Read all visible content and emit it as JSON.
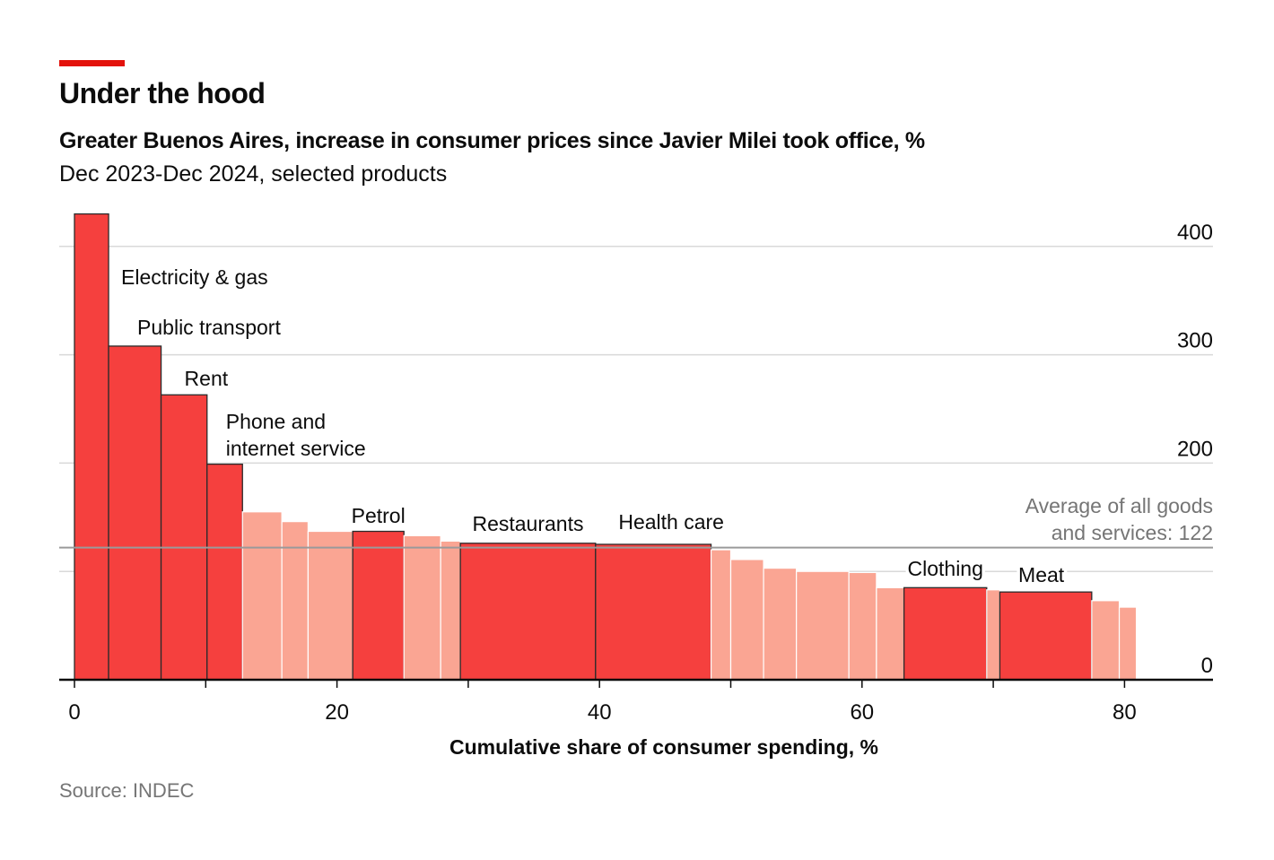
{
  "header": {
    "title": "Under the hood",
    "subtitle": "Greater Buenos Aires, increase in consumer prices since Javier Milei took office, %",
    "subtitle2": "Dec 2023-Dec 2024, selected products"
  },
  "footer": {
    "source": "Source: INDEC"
  },
  "colors": {
    "highlight": "#f5403e",
    "muted": "#faa593",
    "accent": "#e3120b",
    "grid": "#d9d9d9",
    "average_line": "#9a9a9a",
    "average_text": "#757575"
  },
  "chart_data": {
    "type": "bar",
    "subtype": "variable-width (Marimekko)",
    "title": "Under the hood",
    "xlabel": "Cumulative share of consumer spending, %",
    "ylabel": "",
    "xlim": [
      0,
      86
    ],
    "ylim": [
      0,
      430
    ],
    "x_ticks": [
      0,
      20,
      40,
      60,
      80
    ],
    "x_minor_ticks": [
      10,
      30,
      50,
      70
    ],
    "y_ticks": [
      0,
      200,
      300,
      400
    ],
    "y_tick_labels": [
      "0",
      "200",
      "300",
      "400"
    ],
    "extra_gridlines": [
      100
    ],
    "average": {
      "value": 122,
      "label_line1": "Average of all goods",
      "label_line2": "and services: 122"
    },
    "bars": [
      {
        "x0": 0.0,
        "x1": 2.6,
        "value": 430,
        "highlight": true,
        "label": "Electricity & gas"
      },
      {
        "x0": 2.6,
        "x1": 6.6,
        "value": 308,
        "highlight": true,
        "label": "Public transport"
      },
      {
        "x0": 6.6,
        "x1": 10.1,
        "value": 263,
        "highlight": true,
        "label": "Rent"
      },
      {
        "x0": 10.1,
        "x1": 12.8,
        "value": 199,
        "highlight": true,
        "label": "Phone and internet service"
      },
      {
        "x0": 12.8,
        "x1": 15.8,
        "value": 155,
        "highlight": false,
        "label": ""
      },
      {
        "x0": 15.8,
        "x1": 17.8,
        "value": 146,
        "highlight": false,
        "label": ""
      },
      {
        "x0": 17.8,
        "x1": 21.2,
        "value": 137,
        "highlight": false,
        "label": ""
      },
      {
        "x0": 21.2,
        "x1": 25.1,
        "value": 137,
        "highlight": true,
        "label": "Petrol"
      },
      {
        "x0": 25.1,
        "x1": 27.9,
        "value": 133,
        "highlight": false,
        "label": ""
      },
      {
        "x0": 27.9,
        "x1": 29.4,
        "value": 128,
        "highlight": false,
        "label": ""
      },
      {
        "x0": 29.4,
        "x1": 39.7,
        "value": 126,
        "highlight": true,
        "label": "Restaurants"
      },
      {
        "x0": 39.7,
        "x1": 48.5,
        "value": 125,
        "highlight": true,
        "label": "Health care"
      },
      {
        "x0": 48.5,
        "x1": 50.0,
        "value": 120,
        "highlight": false,
        "label": ""
      },
      {
        "x0": 50.0,
        "x1": 52.5,
        "value": 111,
        "highlight": false,
        "label": ""
      },
      {
        "x0": 52.5,
        "x1": 55.0,
        "value": 103,
        "highlight": false,
        "label": ""
      },
      {
        "x0": 55.0,
        "x1": 59.0,
        "value": 100,
        "highlight": false,
        "label": ""
      },
      {
        "x0": 59.0,
        "x1": 61.1,
        "value": 99,
        "highlight": false,
        "label": ""
      },
      {
        "x0": 61.1,
        "x1": 63.2,
        "value": 85,
        "highlight": false,
        "label": ""
      },
      {
        "x0": 63.2,
        "x1": 69.5,
        "value": 85,
        "highlight": true,
        "label": "Clothing"
      },
      {
        "x0": 69.5,
        "x1": 70.5,
        "value": 83,
        "highlight": false,
        "label": ""
      },
      {
        "x0": 70.5,
        "x1": 77.5,
        "value": 81,
        "highlight": true,
        "label": "Meat"
      },
      {
        "x0": 77.5,
        "x1": 79.6,
        "value": 73,
        "highlight": false,
        "label": ""
      },
      {
        "x0": 79.6,
        "x1": 80.9,
        "value": 67,
        "highlight": false,
        "label": ""
      }
    ]
  }
}
